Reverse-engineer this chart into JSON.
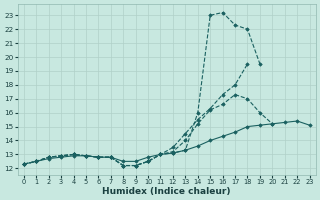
{
  "xlabel": "Humidex (Indice chaleur)",
  "background_color": "#c8e8e0",
  "grid_color": "#b0d0c8",
  "line_color": "#1a6060",
  "xlim": [
    -0.5,
    23.5
  ],
  "ylim": [
    11.5,
    23.8
  ],
  "yticks": [
    12,
    13,
    14,
    15,
    16,
    17,
    18,
    19,
    20,
    21,
    22,
    23
  ],
  "xticks": [
    0,
    1,
    2,
    3,
    4,
    5,
    6,
    7,
    8,
    9,
    10,
    11,
    12,
    13,
    14,
    15,
    16,
    17,
    18,
    19,
    20,
    21,
    22,
    23
  ],
  "series": [
    {
      "x": [
        0,
        1,
        2,
        3,
        4,
        5,
        6,
        7,
        8,
        9,
        10,
        11,
        12,
        13,
        14,
        15,
        16,
        17,
        18,
        19
      ],
      "y": [
        12.3,
        12.5,
        12.8,
        12.9,
        13.0,
        12.9,
        12.8,
        12.8,
        12.2,
        12.2,
        12.5,
        13.0,
        13.1,
        13.3,
        16.0,
        23.0,
        23.2,
        22.3,
        22.0,
        19.5
      ],
      "ls": "--"
    },
    {
      "x": [
        0,
        1,
        2,
        3,
        4,
        5,
        6,
        7,
        8,
        9,
        10,
        11,
        12,
        13,
        14,
        15,
        16,
        17,
        18,
        19,
        20
      ],
      "y": [
        12.3,
        12.5,
        12.8,
        12.9,
        13.0,
        12.9,
        12.8,
        12.8,
        12.2,
        12.2,
        12.5,
        13.0,
        13.2,
        14.0,
        15.2,
        16.2,
        16.6,
        17.3,
        17.0,
        16.0,
        15.2
      ],
      "ls": "--"
    },
    {
      "x": [
        0,
        1,
        2,
        3,
        4,
        5,
        6,
        7,
        8,
        9,
        10,
        11,
        12,
        13,
        14,
        15,
        16,
        17,
        18,
        19,
        20,
        21,
        22,
        23
      ],
      "y": [
        12.3,
        12.5,
        12.7,
        12.8,
        12.9,
        12.9,
        12.8,
        12.8,
        12.5,
        12.5,
        12.8,
        13.0,
        13.1,
        13.3,
        13.6,
        14.0,
        14.3,
        14.6,
        15.0,
        15.1,
        15.2,
        15.3,
        15.4,
        15.1
      ],
      "ls": "-"
    },
    {
      "x": [
        0,
        1,
        2,
        3,
        4,
        5,
        6,
        7,
        8,
        9,
        10,
        11,
        12,
        13,
        14,
        15,
        16,
        17,
        18
      ],
      "y": [
        12.3,
        12.5,
        12.8,
        12.9,
        13.0,
        12.9,
        12.8,
        12.8,
        12.2,
        12.2,
        12.5,
        13.0,
        13.5,
        14.5,
        15.5,
        16.3,
        17.3,
        18.0,
        19.5
      ],
      "ls": "--"
    }
  ]
}
